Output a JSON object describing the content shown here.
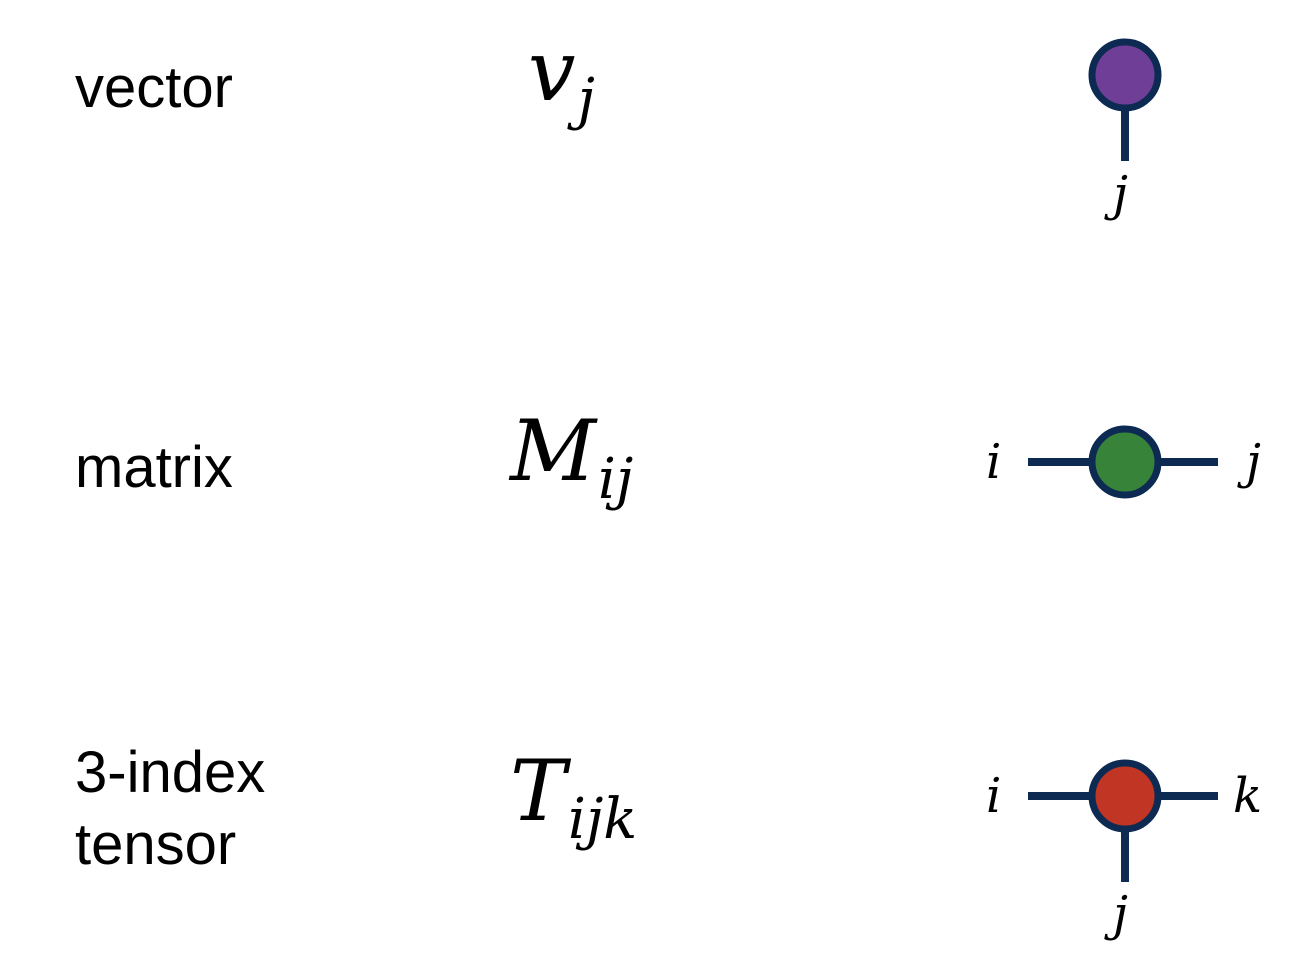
{
  "rows": [
    {
      "label": "vector",
      "formula": {
        "base": "v",
        "sub": "j"
      },
      "node_color": "#6f3f97",
      "legs": [
        {
          "dir": "down",
          "index": "j"
        }
      ]
    },
    {
      "label": "matrix",
      "formula": {
        "base": "M",
        "sub": "ij"
      },
      "node_color": "#37833a",
      "legs": [
        {
          "dir": "left",
          "index": "i"
        },
        {
          "dir": "right",
          "index": "j"
        }
      ]
    },
    {
      "label": "3-index\ntensor",
      "formula": {
        "base": "T",
        "sub": "ijk"
      },
      "node_color": "#c03524",
      "legs": [
        {
          "dir": "left",
          "index": "i"
        },
        {
          "dir": "right",
          "index": "k"
        },
        {
          "dir": "down",
          "index": "j"
        }
      ]
    }
  ],
  "colors": {
    "stroke": "#0d2a52",
    "text": "#000000",
    "background": "#ffffff"
  }
}
